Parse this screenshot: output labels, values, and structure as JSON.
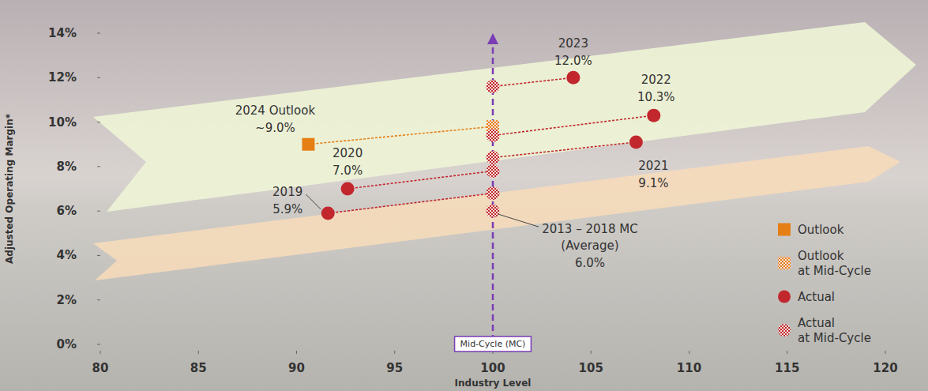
{
  "chart_data": {
    "type": "scatter",
    "x_label": "Industry Level",
    "y_label": "Adjusted Operating Margin*",
    "xlim": [
      80,
      120
    ],
    "xticks": [
      80,
      85,
      90,
      95,
      100,
      105,
      110,
      115,
      120
    ],
    "ylim": [
      0,
      14
    ],
    "yticks": [
      {
        "value": 0,
        "label": "0%"
      },
      {
        "value": 2,
        "label": "2%"
      },
      {
        "value": 4,
        "label": "4%"
      },
      {
        "value": 6,
        "label": "6%"
      },
      {
        "value": 8,
        "label": "8%"
      },
      {
        "value": 10,
        "label": "10%"
      },
      {
        "value": 12,
        "label": "12%"
      },
      {
        "value": 14,
        "label": "14%"
      }
    ],
    "grid": false,
    "legend": "right",
    "data_labels": true,
    "annotations": [
      {
        "x": 100,
        "label": "Mid-Cycle (MC)"
      }
    ],
    "series": [
      {
        "name": "Outlook",
        "color": "#e57f14",
        "marker": "square",
        "x": [
          90.6
        ],
        "values": [
          9.0
        ],
        "labels": [
          "2024 Outlook"
        ],
        "value_labels": [
          "~9.0%"
        ]
      },
      {
        "name": "Outlook at Mid-Cycle",
        "color": "#e57f14",
        "marker": "checkered-square",
        "x": [
          100
        ],
        "values": [
          9.8
        ]
      },
      {
        "name": "Actual",
        "color": "#c1272d",
        "marker": "circle",
        "x": [
          91.6,
          92.6,
          107.3,
          108.2,
          104.1
        ],
        "values": [
          5.9,
          7.0,
          9.1,
          10.3,
          12.0
        ],
        "labels": [
          "2019",
          "2020",
          "2021",
          "2022",
          "2023"
        ],
        "value_labels": [
          "5.9%",
          "7.0%",
          "9.1%",
          "10.3%",
          "12.0%"
        ]
      },
      {
        "name": "Actual at Mid-Cycle",
        "color": "#c1272d",
        "marker": "checkered-circle",
        "x": [
          100,
          100,
          100,
          100,
          100,
          100
        ],
        "values": [
          6.8,
          7.8,
          8.4,
          9.4,
          11.6,
          6.0
        ],
        "labels": [
          null,
          null,
          null,
          null,
          null,
          "2013 – 2018 MC (Average)"
        ],
        "value_labels": [
          null,
          null,
          null,
          null,
          null,
          "6.0%"
        ]
      }
    ]
  }
}
